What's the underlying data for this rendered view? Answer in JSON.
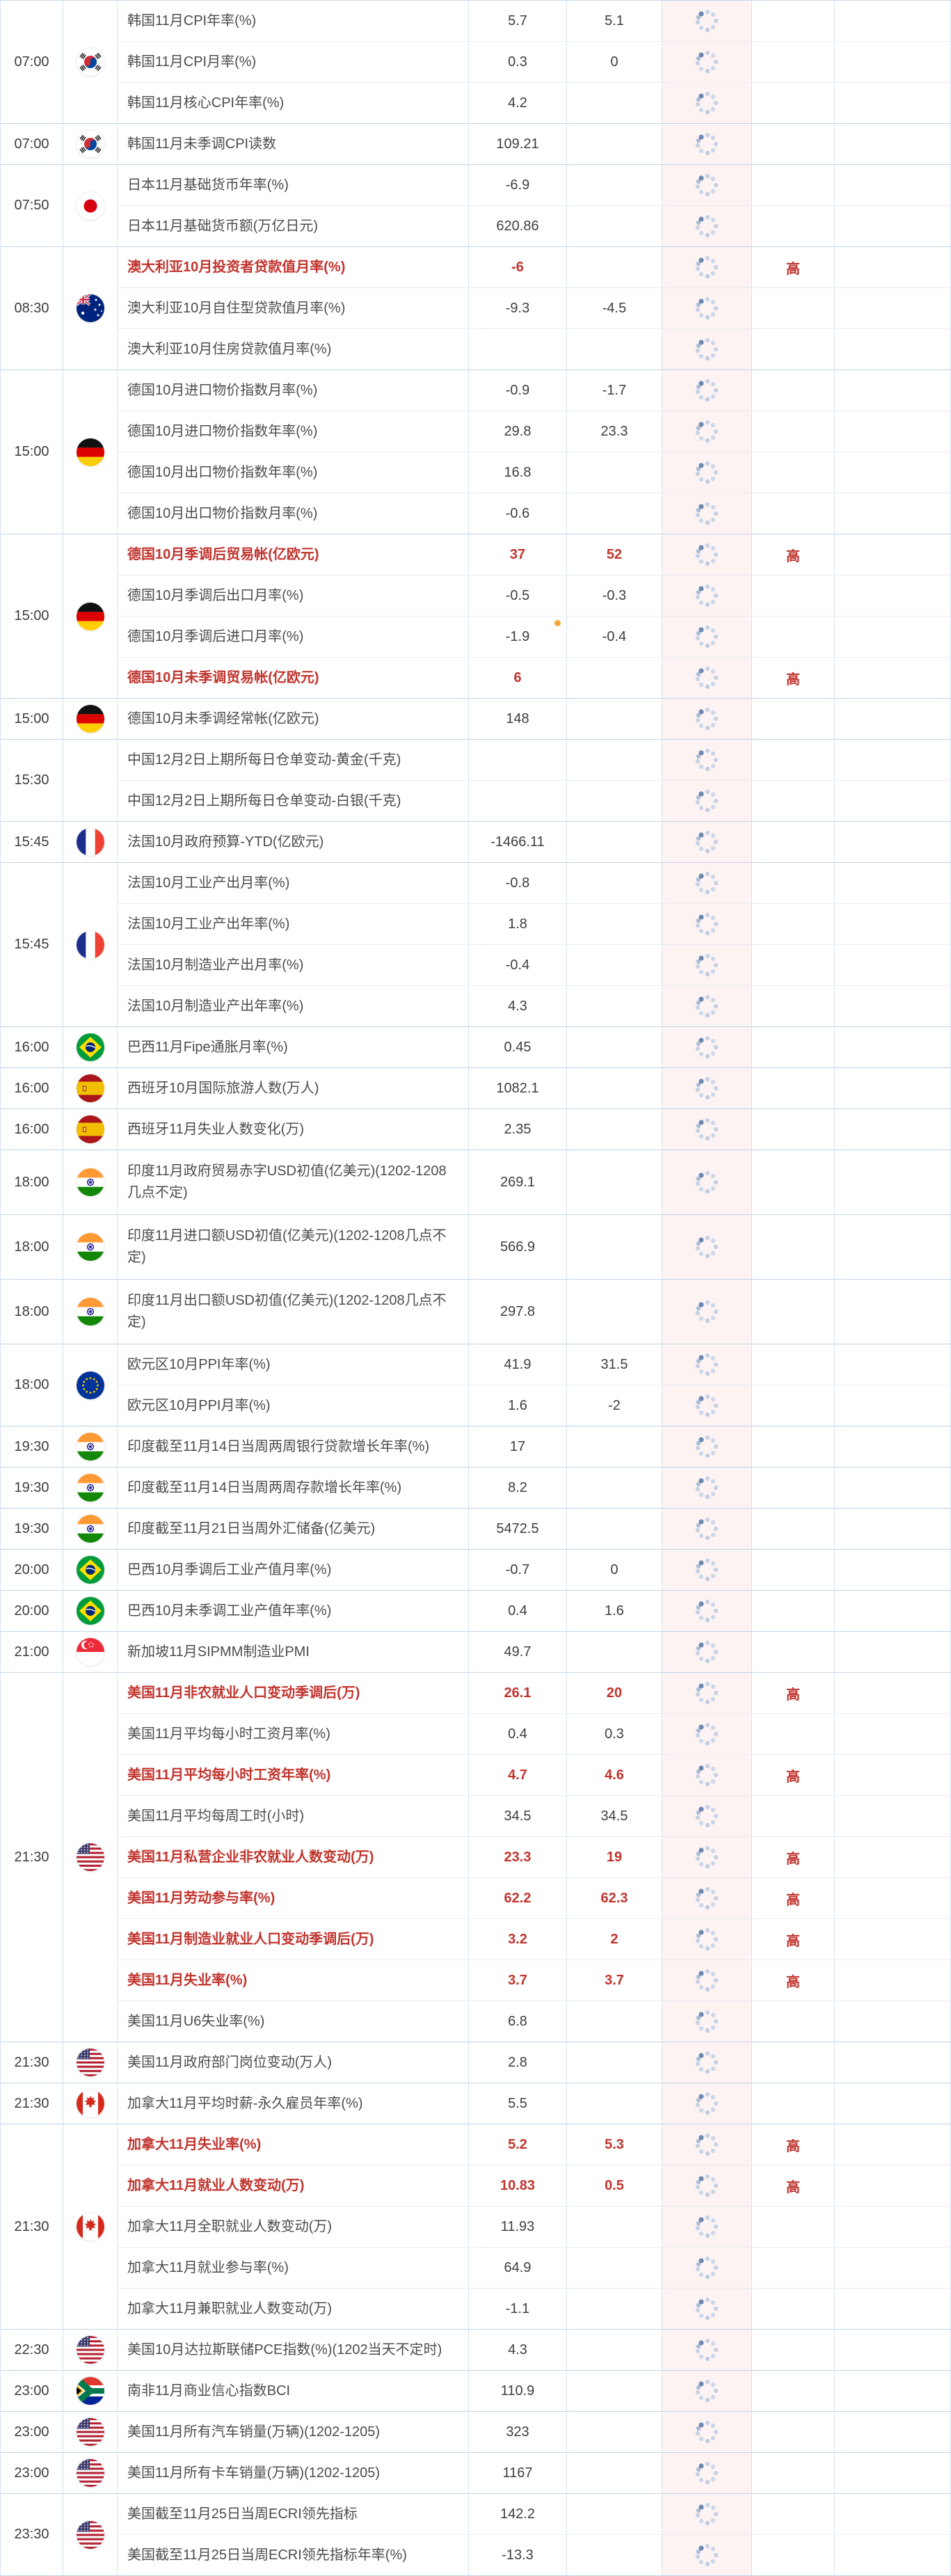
{
  "table": {
    "importance_high": "高",
    "colors": {
      "important_red": "#c1342e",
      "spinner_column_bg": "#fdf3f3"
    },
    "groups": [
      {
        "time": "07:00",
        "country": "south-korea",
        "rows": [
          {
            "event": "韩国11月CPI年率(%)",
            "prev": "5.7",
            "forecast": "5.1"
          },
          {
            "event": "韩国11月CPI月率(%)",
            "prev": "0.3",
            "forecast": "0"
          },
          {
            "event": "韩国11月核心CPI年率(%)",
            "prev": "4.2",
            "forecast": ""
          }
        ]
      },
      {
        "time": "07:00",
        "country": "south-korea",
        "rows": [
          {
            "event": "韩国11月未季调CPI读数",
            "prev": "109.21",
            "forecast": ""
          }
        ]
      },
      {
        "time": "07:50",
        "country": "japan",
        "rows": [
          {
            "event": "日本11月基础货币年率(%)",
            "prev": "-6.9",
            "forecast": ""
          },
          {
            "event": "日本11月基础货币额(万亿日元)",
            "prev": "620.86",
            "forecast": ""
          }
        ]
      },
      {
        "time": "08:30",
        "country": "australia",
        "rows": [
          {
            "event": "澳大利亚10月投资者贷款值月率(%)",
            "prev": "-6",
            "forecast": "",
            "important": true,
            "high": true
          },
          {
            "event": "澳大利亚10月自住型贷款值月率(%)",
            "prev": "-9.3",
            "forecast": "-4.5"
          },
          {
            "event": "澳大利亚10月住房贷款值月率(%)",
            "prev": "",
            "forecast": ""
          }
        ]
      },
      {
        "time": "15:00",
        "country": "germany",
        "rows": [
          {
            "event": "德国10月进口物价指数月率(%)",
            "prev": "-0.9",
            "forecast": "-1.7"
          },
          {
            "event": "德国10月进口物价指数年率(%)",
            "prev": "29.8",
            "forecast": "23.3"
          },
          {
            "event": "德国10月出口物价指数年率(%)",
            "prev": "16.8",
            "forecast": ""
          },
          {
            "event": "德国10月出口物价指数月率(%)",
            "prev": "-0.6",
            "forecast": ""
          }
        ]
      },
      {
        "time": "15:00",
        "country": "germany",
        "rows": [
          {
            "event": "德国10月季调后贸易帐(亿欧元)",
            "prev": "37",
            "forecast": "52",
            "important": true,
            "high": true
          },
          {
            "event": "德国10月季调后出口月率(%)",
            "prev": "-0.5",
            "forecast": "-0.3"
          },
          {
            "event": "德国10月季调后进口月率(%)",
            "prev": "-1.9",
            "forecast": "-0.4",
            "dot": true
          },
          {
            "event": "德国10月未季调贸易帐(亿欧元)",
            "prev": "6",
            "forecast": "",
            "important": true,
            "high": true
          }
        ]
      },
      {
        "time": "15:00",
        "country": "germany",
        "rows": [
          {
            "event": "德国10月未季调经常帐(亿欧元)",
            "prev": "148",
            "forecast": ""
          }
        ]
      },
      {
        "time": "15:30",
        "country": "",
        "rows": [
          {
            "event": "中国12月2日上期所每日仓单变动-黄金(千克)",
            "prev": "",
            "forecast": ""
          },
          {
            "event": "中国12月2日上期所每日仓单变动-白银(千克)",
            "prev": "",
            "forecast": ""
          }
        ]
      },
      {
        "time": "15:45",
        "country": "france",
        "rows": [
          {
            "event": "法国10月政府预算-YTD(亿欧元)",
            "prev": "-1466.11",
            "forecast": ""
          }
        ]
      },
      {
        "time": "15:45",
        "country": "france",
        "rows": [
          {
            "event": "法国10月工业产出月率(%)",
            "prev": "-0.8",
            "forecast": ""
          },
          {
            "event": "法国10月工业产出年率(%)",
            "prev": "1.8",
            "forecast": ""
          },
          {
            "event": "法国10月制造业产出月率(%)",
            "prev": "-0.4",
            "forecast": ""
          },
          {
            "event": "法国10月制造业产出年率(%)",
            "prev": "4.3",
            "forecast": ""
          }
        ]
      },
      {
        "time": "16:00",
        "country": "brazil",
        "rows": [
          {
            "event": "巴西11月Fipe通胀月率(%)",
            "prev": "0.45",
            "forecast": ""
          }
        ]
      },
      {
        "time": "16:00",
        "country": "spain",
        "rows": [
          {
            "event": "西班牙10月国际旅游人数(万人)",
            "prev": "1082.1",
            "forecast": ""
          }
        ]
      },
      {
        "time": "16:00",
        "country": "spain",
        "rows": [
          {
            "event": "西班牙11月失业人数变化(万)",
            "prev": "2.35",
            "forecast": ""
          }
        ]
      },
      {
        "time": "18:00",
        "country": "india",
        "rows": [
          {
            "event": "印度11月政府贸易赤字USD初值(亿美元)(1202-1208几点不定)",
            "prev": "269.1",
            "forecast": "",
            "tall": true
          }
        ]
      },
      {
        "time": "18:00",
        "country": "india",
        "rows": [
          {
            "event": "印度11月进口额USD初值(亿美元)(1202-1208几点不定)",
            "prev": "566.9",
            "forecast": "",
            "tall": true
          }
        ]
      },
      {
        "time": "18:00",
        "country": "india",
        "rows": [
          {
            "event": "印度11月出口额USD初值(亿美元)(1202-1208几点不定)",
            "prev": "297.8",
            "forecast": "",
            "tall": true
          }
        ]
      },
      {
        "time": "18:00",
        "country": "eu",
        "rows": [
          {
            "event": "欧元区10月PPI年率(%)",
            "prev": "41.9",
            "forecast": "31.5"
          },
          {
            "event": "欧元区10月PPI月率(%)",
            "prev": "1.6",
            "forecast": "-2"
          }
        ]
      },
      {
        "time": "19:30",
        "country": "india",
        "rows": [
          {
            "event": "印度截至11月14日当周两周银行贷款增长年率(%)",
            "prev": "17",
            "forecast": ""
          }
        ]
      },
      {
        "time": "19:30",
        "country": "india",
        "rows": [
          {
            "event": "印度截至11月14日当周两周存款增长年率(%)",
            "prev": "8.2",
            "forecast": ""
          }
        ]
      },
      {
        "time": "19:30",
        "country": "india",
        "rows": [
          {
            "event": "印度截至11月21日当周外汇储备(亿美元)",
            "prev": "5472.5",
            "forecast": ""
          }
        ]
      },
      {
        "time": "20:00",
        "country": "brazil",
        "rows": [
          {
            "event": "巴西10月季调后工业产值月率(%)",
            "prev": "-0.7",
            "forecast": "0"
          }
        ]
      },
      {
        "time": "20:00",
        "country": "brazil",
        "rows": [
          {
            "event": "巴西10月未季调工业产值年率(%)",
            "prev": "0.4",
            "forecast": "1.6"
          }
        ]
      },
      {
        "time": "21:00",
        "country": "singapore",
        "rows": [
          {
            "event": "新加坡11月SIPMM制造业PMI",
            "prev": "49.7",
            "forecast": ""
          }
        ]
      },
      {
        "time": "21:30",
        "country": "us",
        "rows": [
          {
            "event": "美国11月非农就业人口变动季调后(万)",
            "prev": "26.1",
            "forecast": "20",
            "important": true,
            "high": true
          },
          {
            "event": "美国11月平均每小时工资月率(%)",
            "prev": "0.4",
            "forecast": "0.3"
          },
          {
            "event": "美国11月平均每小时工资年率(%)",
            "prev": "4.7",
            "forecast": "4.6",
            "important": true,
            "high": true
          },
          {
            "event": "美国11月平均每周工时(小时)",
            "prev": "34.5",
            "forecast": "34.5"
          },
          {
            "event": "美国11月私营企业非农就业人数变动(万)",
            "prev": "23.3",
            "forecast": "19",
            "important": true,
            "high": true
          },
          {
            "event": "美国11月劳动参与率(%)",
            "prev": "62.2",
            "forecast": "62.3",
            "important": true,
            "high": true
          },
          {
            "event": "美国11月制造业就业人口变动季调后(万)",
            "prev": "3.2",
            "forecast": "2",
            "important": true,
            "high": true
          },
          {
            "event": "美国11月失业率(%)",
            "prev": "3.7",
            "forecast": "3.7",
            "important": true,
            "high": true
          },
          {
            "event": "美国11月U6失业率(%)",
            "prev": "6.8",
            "forecast": ""
          }
        ]
      },
      {
        "time": "21:30",
        "country": "us",
        "rows": [
          {
            "event": "美国11月政府部门岗位变动(万人)",
            "prev": "2.8",
            "forecast": ""
          }
        ]
      },
      {
        "time": "21:30",
        "country": "canada",
        "rows": [
          {
            "event": "加拿大11月平均时薪-永久雇员年率(%)",
            "prev": "5.5",
            "forecast": ""
          }
        ]
      },
      {
        "time": "21:30",
        "country": "canada",
        "rows": [
          {
            "event": "加拿大11月失业率(%)",
            "prev": "5.2",
            "forecast": "5.3",
            "important": true,
            "high": true
          },
          {
            "event": "加拿大11月就业人数变动(万)",
            "prev": "10.83",
            "forecast": "0.5",
            "important": true,
            "high": true
          },
          {
            "event": "加拿大11月全职就业人数变动(万)",
            "prev": "11.93",
            "forecast": ""
          },
          {
            "event": "加拿大11月就业参与率(%)",
            "prev": "64.9",
            "forecast": ""
          },
          {
            "event": "加拿大11月兼职就业人数变动(万)",
            "prev": "-1.1",
            "forecast": ""
          }
        ]
      },
      {
        "time": "22:30",
        "country": "us",
        "rows": [
          {
            "event": "美国10月达拉斯联储PCE指数(%)(1202当天不定时)",
            "prev": "4.3",
            "forecast": ""
          }
        ]
      },
      {
        "time": "23:00",
        "country": "south-africa",
        "rows": [
          {
            "event": "南非11月商业信心指数BCI",
            "prev": "110.9",
            "forecast": ""
          }
        ]
      },
      {
        "time": "23:00",
        "country": "us",
        "rows": [
          {
            "event": "美国11月所有汽车销量(万辆)(1202-1205)",
            "prev": "323",
            "forecast": ""
          }
        ]
      },
      {
        "time": "23:00",
        "country": "us",
        "rows": [
          {
            "event": "美国11月所有卡车销量(万辆)(1202-1205)",
            "prev": "1167",
            "forecast": ""
          }
        ]
      },
      {
        "time": "23:30",
        "country": "us",
        "rows": [
          {
            "event": "美国截至11月25日当周ECRI领先指标",
            "prev": "142.2",
            "forecast": ""
          },
          {
            "event": "美国截至11月25日当周ECRI领先指标年率(%)",
            "prev": "-13.3",
            "forecast": ""
          }
        ]
      }
    ]
  }
}
